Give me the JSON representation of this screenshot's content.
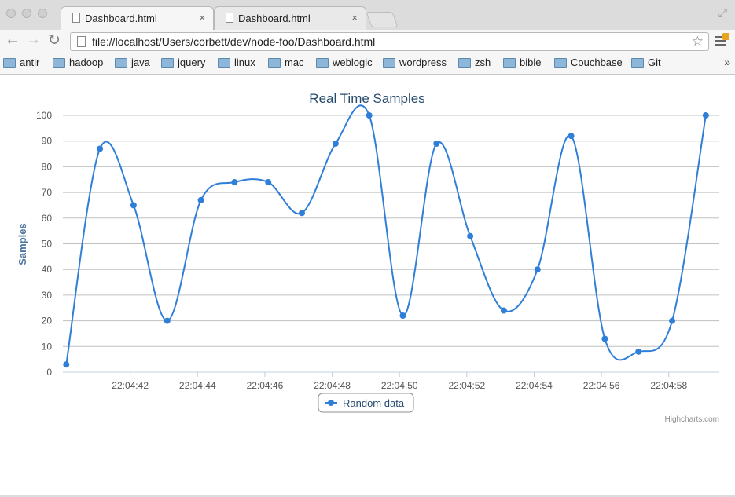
{
  "window": {
    "tabs": [
      {
        "title": "Dashboard.html",
        "close": "×"
      },
      {
        "title": "Dashboard.html",
        "close": "×"
      }
    ]
  },
  "toolbar": {
    "url": "file://localhost/Users/corbett/dev/node-foo/Dashboard.html",
    "back_icon": "arrow-left-icon",
    "forward_icon": "arrow-right-icon",
    "reload_icon": "reload-icon",
    "bookmark_icon": "star-icon",
    "menu_icon": "hamburger-menu-icon"
  },
  "bookmarks": {
    "items": [
      "antlr",
      "hadoop",
      "java",
      "jquery",
      "linux",
      "mac",
      "weblogic",
      "wordpress",
      "zsh",
      "bible",
      "Couchbase",
      "Git"
    ],
    "more": "»"
  },
  "chart_data": {
    "type": "line",
    "title": "Real Time Samples",
    "ylabel": "Samples",
    "xlabel": "",
    "ylim": [
      0,
      100
    ],
    "yticks": [
      0,
      10,
      20,
      30,
      40,
      50,
      60,
      70,
      80,
      90,
      100
    ],
    "xticks": [
      "22:04:42",
      "22:04:44",
      "22:04:46",
      "22:04:48",
      "22:04:50",
      "22:04:52",
      "22:04:54",
      "22:04:56",
      "22:04:58"
    ],
    "x_range_seconds": [
      40,
      59.5
    ],
    "xtick_seconds": [
      42,
      44,
      46,
      48,
      50,
      52,
      54,
      56,
      58
    ],
    "grid": true,
    "legend_position": "bottom-center",
    "series": [
      {
        "name": "Random data",
        "color": "#2f7ed8",
        "x_seconds": [
          40.1,
          41.1,
          42.1,
          43.1,
          44.1,
          45.1,
          46.1,
          47.1,
          48.1,
          49.1,
          50.1,
          51.1,
          52.1,
          53.1,
          54.1,
          55.1,
          56.1,
          57.1,
          58.1,
          59.1
        ],
        "values": [
          3,
          87,
          65,
          20,
          67,
          74,
          74,
          62,
          89,
          100,
          22,
          89,
          53,
          24,
          40,
          92,
          13,
          8,
          20,
          100
        ]
      }
    ],
    "credits": "Highcharts.com"
  }
}
